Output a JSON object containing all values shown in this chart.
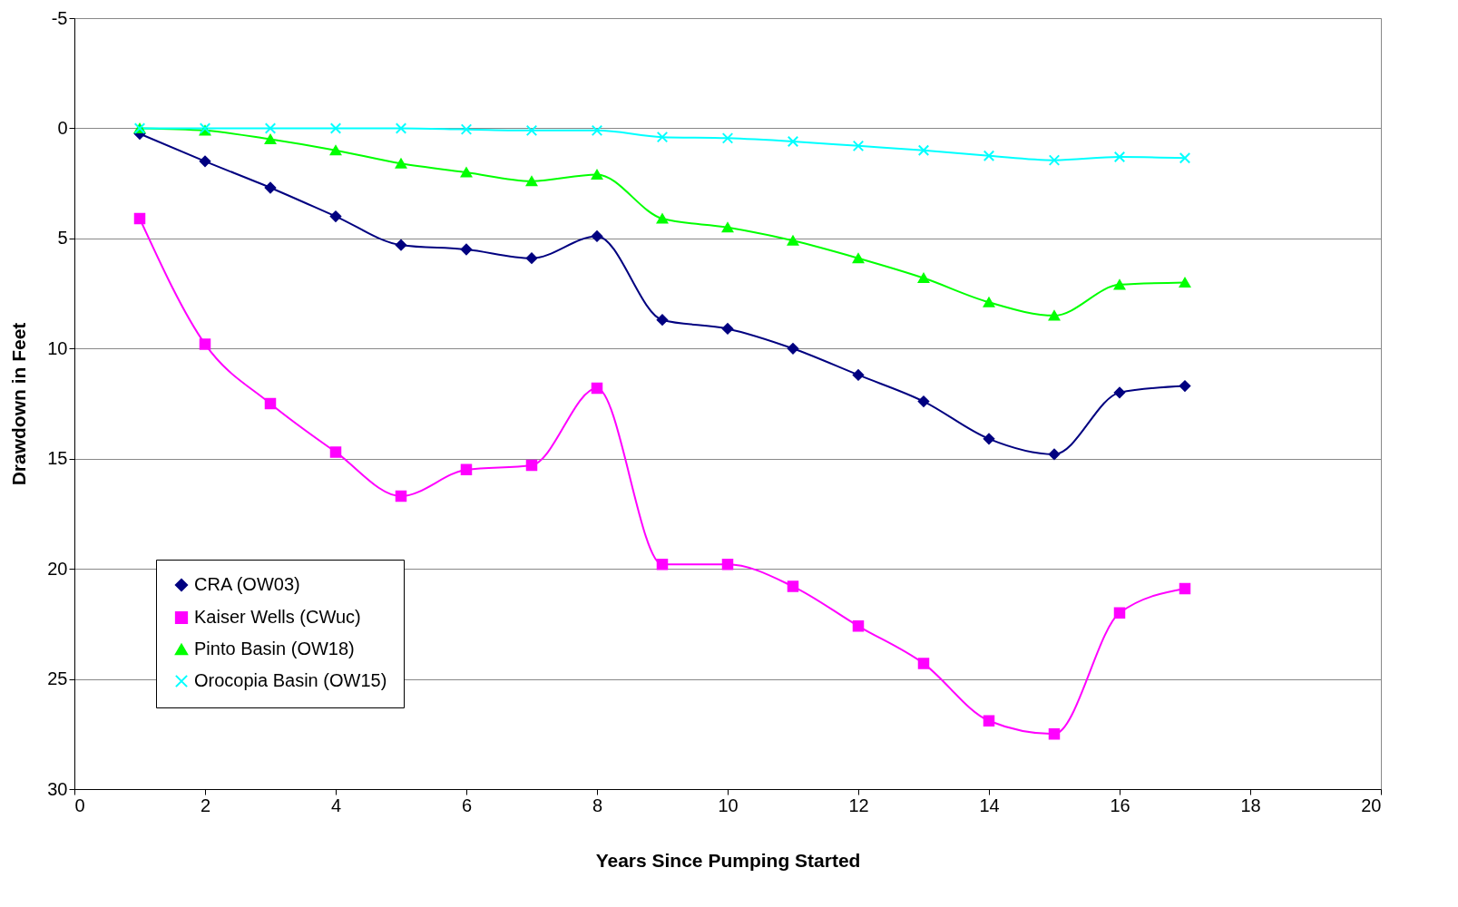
{
  "chart_data": {
    "type": "line",
    "xlabel": "Years Since Pumping Started",
    "ylabel": "Drawdown in Feet",
    "x": [
      1,
      2,
      3,
      4,
      5,
      6,
      7,
      8,
      9,
      10,
      11,
      12,
      13,
      14,
      15,
      16,
      17
    ],
    "series": [
      {
        "name": "CRA (OW03)",
        "color": "#000080",
        "marker": "diamond",
        "values": [
          0.25,
          1.5,
          2.7,
          4.0,
          5.3,
          5.5,
          5.9,
          4.9,
          8.7,
          9.1,
          10.0,
          11.2,
          12.4,
          14.1,
          14.8,
          12.0,
          11.7
        ]
      },
      {
        "name": "Kaiser Wells (CWuc)",
        "color": "#ff00ff",
        "marker": "square",
        "values": [
          4.1,
          9.8,
          12.5,
          14.7,
          16.7,
          15.5,
          15.3,
          11.8,
          19.8,
          19.8,
          20.8,
          22.6,
          24.3,
          26.9,
          27.5,
          22.0,
          20.9
        ]
      },
      {
        "name": "Pinto Basin (OW18)",
        "color": "#00ff00",
        "marker": "triangle",
        "values": [
          0,
          0.1,
          0.5,
          1.0,
          1.6,
          2.0,
          2.4,
          2.1,
          4.1,
          4.5,
          5.1,
          5.9,
          6.8,
          7.9,
          8.5,
          7.1,
          7.0
        ]
      },
      {
        "name": "Orocopia Basin (OW15)",
        "color": "#00ffff",
        "marker": "cross",
        "values": [
          0,
          0,
          0,
          0,
          0,
          0.05,
          0.1,
          0.1,
          0.4,
          0.45,
          0.6,
          0.8,
          1.0,
          1.25,
          1.45,
          1.3,
          1.35
        ]
      }
    ],
    "xlim": [
      0,
      20
    ],
    "xticks": [
      0,
      2,
      4,
      6,
      8,
      10,
      12,
      14,
      16,
      18,
      20
    ],
    "ylim": [
      30,
      -5
    ],
    "yticks": [
      -5,
      0,
      5,
      10,
      15,
      20,
      25,
      30
    ],
    "grid": "y",
    "legend": "bottom left"
  }
}
